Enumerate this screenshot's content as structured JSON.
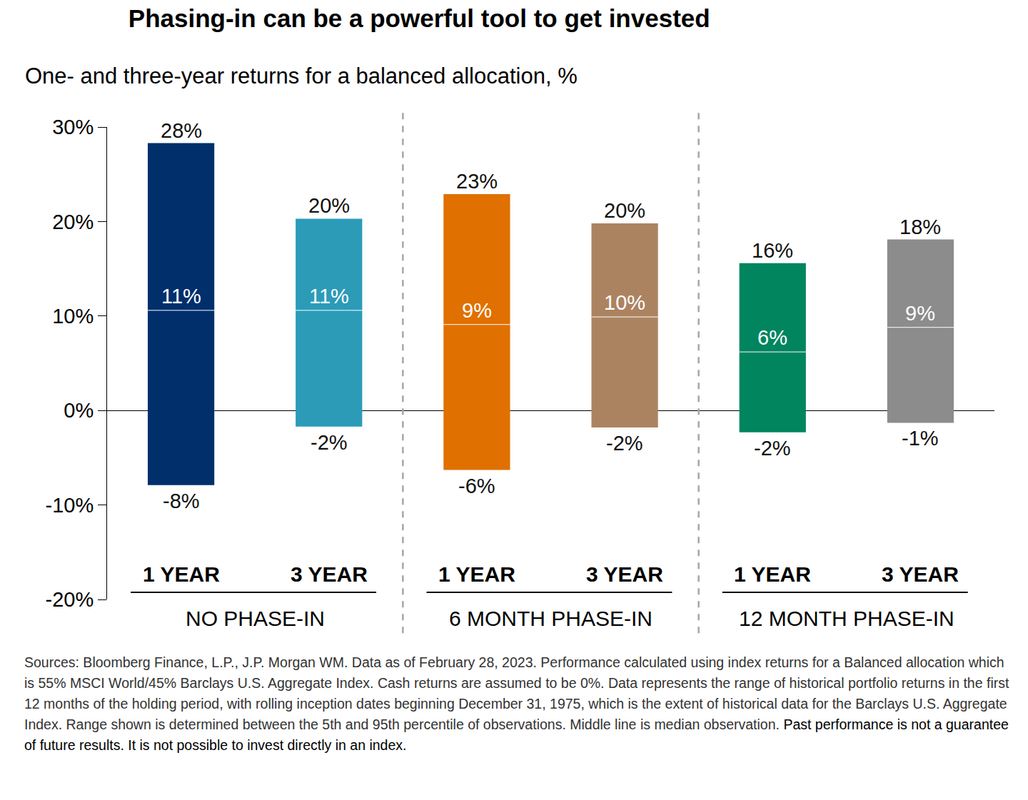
{
  "chart_data": {
    "type": "bar",
    "title": "Phasing-in can be a powerful tool to get invested",
    "subtitle": "One- and three-year returns for a balanced allocation, %",
    "groups": [
      {
        "name": "NO PHASE-IN",
        "categories": [
          "1 YEAR",
          "3 YEAR"
        ]
      },
      {
        "name": "6 MONTH PHASE-IN",
        "categories": [
          "1 YEAR",
          "3 YEAR"
        ]
      },
      {
        "name": "12 MONTH PHASE-IN",
        "categories": [
          "1 YEAR",
          "3 YEAR"
        ]
      }
    ],
    "high": {
      "values": [
        28.3,
        20.3,
        22.9,
        19.8,
        15.6,
        18.1
      ],
      "value_labels": [
        "28%",
        "20%",
        "23%",
        "20%",
        "16%",
        "18%"
      ]
    },
    "median": {
      "values": [
        10.6,
        10.6,
        9.1,
        9.9,
        6.2,
        8.8
      ],
      "value_labels": [
        "11%",
        "11%",
        "9%",
        "10%",
        "6%",
        "9%"
      ]
    },
    "low": {
      "values": [
        -7.9,
        -1.7,
        -6.3,
        -1.8,
        -2.3,
        -1.3
      ],
      "value_labels": [
        "-8%",
        "-2%",
        "-6%",
        "-2%",
        "-2%",
        "-1%"
      ]
    },
    "colors": [
      "#002f6c",
      "#2b9bb8",
      "#e07000",
      "#ac8360",
      "#00855f",
      "#8c8c8c"
    ],
    "ylim": [
      -20,
      30
    ],
    "yticks": [
      {
        "value": -20,
        "label": "-20%"
      },
      {
        "value": -10,
        "label": "-10%"
      },
      {
        "value": 0,
        "label": "0%"
      },
      {
        "value": 10,
        "label": "10%"
      },
      {
        "value": 20,
        "label": "20%"
      },
      {
        "value": 30,
        "label": "30%"
      }
    ],
    "grid": false,
    "data_labels": true,
    "tick_labels": "y",
    "footnote": "Sources: Bloomberg Finance, L.P., J.P. Morgan WM. Data as of February 28, 2023. Performance calculated using index returns for a Balanced allocation which is 55% MSCI World/45% Barclays U.S. Aggregate Index. Cash returns are assumed to be 0%. Data represents the range of historical portfolio returns in the first 12 months of the holding period, with rolling inception dates beginning December 31, 1975, which is the extent of historical data for the Barclays U.S. Aggregate Index. Range shown is determined between the 5th and 95th percentile of observations. Middle line is median observation.",
    "footnote_emphasis": "Past performance is not a guarantee of future results. It is not possible to invest directly in an index."
  }
}
